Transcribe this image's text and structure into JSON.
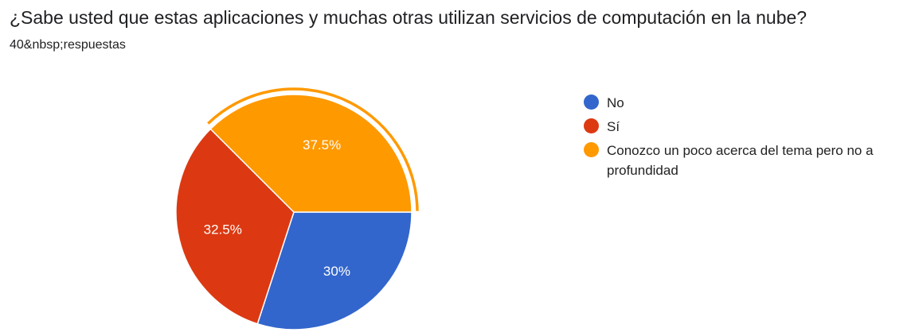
{
  "header": {
    "title": "¿Sabe usted que estas aplicaciones y muchas otras utilizan servicios de computación en la nube?",
    "responses": "40&nbsp;respuestas"
  },
  "chart_data": {
    "type": "pie",
    "categories": [
      "No",
      "Sí",
      "Conozco un poco acerca del tema pero no a profundidad"
    ],
    "values": [
      30,
      32.5,
      37.5
    ],
    "labels": [
      "30%",
      "32.5%",
      "37.5%"
    ],
    "colors": [
      "#3366cc",
      "#dc3912",
      "#ff9900"
    ],
    "highlighted": "Conozco un poco acerca del tema pero no a profundidad",
    "legend": "right"
  }
}
